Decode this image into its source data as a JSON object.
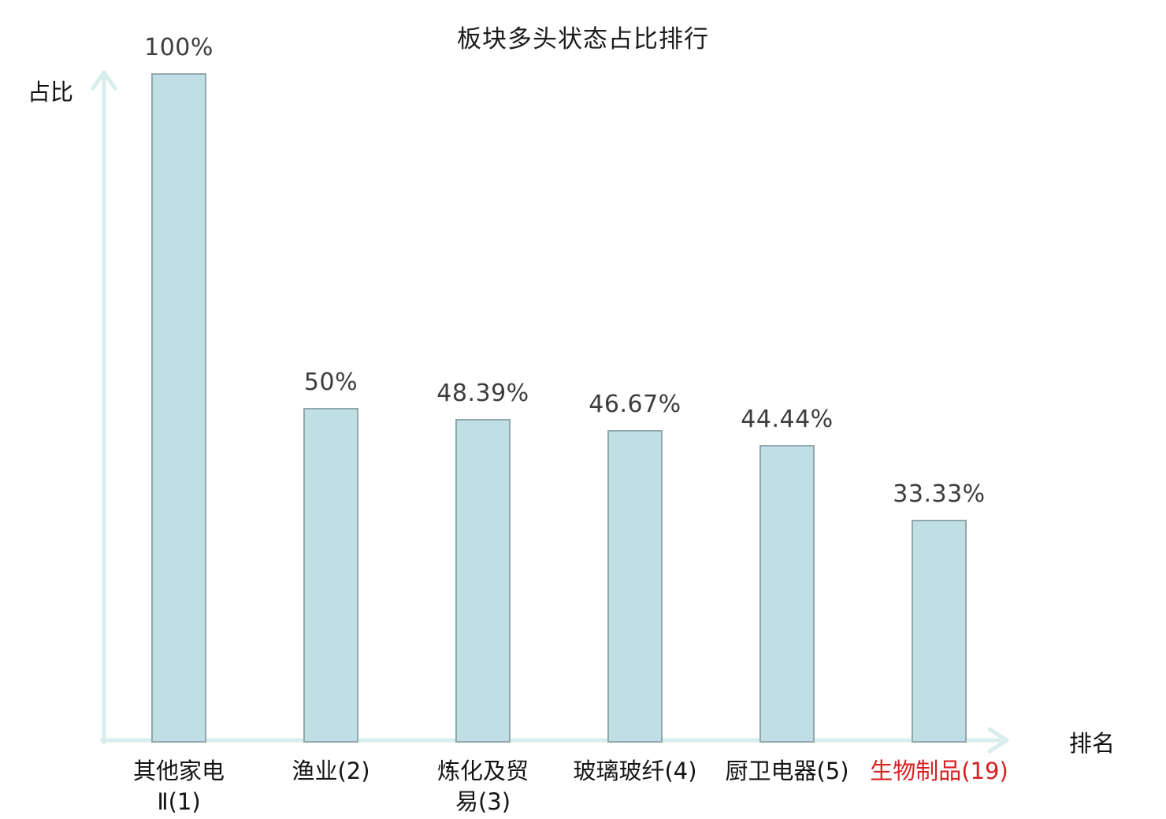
{
  "chart_data": {
    "type": "bar",
    "title": "板块多头状态占比排行",
    "xlabel": "排名",
    "ylabel": "占比",
    "categories": [
      "其他家电Ⅱ(1)",
      "渔业(2)",
      "炼化及贸易(3)",
      "玻璃玻纤(4)",
      "厨卫电器(5)",
      "生物制品(19)"
    ],
    "values": [
      100,
      50,
      48.39,
      46.67,
      44.44,
      33.33
    ],
    "value_labels": [
      "100%",
      "50%",
      "48.39%",
      "46.67%",
      "44.44%",
      "33.33%"
    ],
    "category_display_lines": [
      [
        "其他家电",
        "Ⅱ(1)"
      ],
      [
        "渔业(2)"
      ],
      [
        "炼化及贸",
        "易(3)"
      ],
      [
        "玻璃玻纤(4)"
      ],
      [
        "厨卫电器(5)"
      ],
      [
        "生物制品(19)"
      ]
    ],
    "highlight_index": 5,
    "highlight_color": "#d62121",
    "label_color": "#141414",
    "value_color": "#3d3d3d",
    "bar_fill": "#c0dfe4",
    "bar_border": "#92a7ab",
    "axis_color": "#d8edee",
    "ylim": [
      0,
      100
    ],
    "grid": false,
    "legend": false
  }
}
